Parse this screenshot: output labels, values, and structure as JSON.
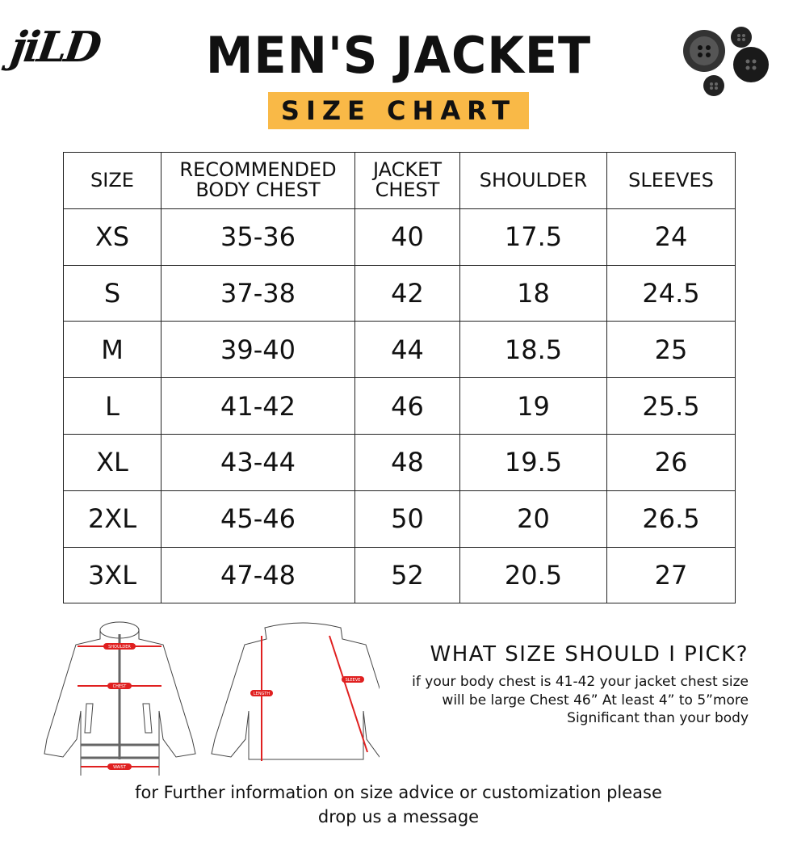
{
  "brand": "jiLD",
  "title": "MEN'S JACKET",
  "subtitle": "SIZE CHART",
  "table": {
    "headers": [
      "SIZE",
      "RECOMMENDED BODY CHEST",
      "JACKET CHEST",
      "SHOULDER",
      "SLEEVES"
    ],
    "rows": [
      [
        "XS",
        "35-36",
        "40",
        "17.5",
        "24"
      ],
      [
        "S",
        "37-38",
        "42",
        "18",
        "24.5"
      ],
      [
        "M",
        "39-40",
        "44",
        "18.5",
        "25"
      ],
      [
        "L",
        "41-42",
        "46",
        "19",
        "25.5"
      ],
      [
        "XL",
        "43-44",
        "48",
        "19.5",
        "26"
      ],
      [
        "2XL",
        "45-46",
        "50",
        "20",
        "26.5"
      ],
      [
        "3XL",
        "47-48",
        "52",
        "20.5",
        "27"
      ]
    ]
  },
  "diagram": {
    "labels": {
      "shoulder": "SHOULDER",
      "chest": "CHEST",
      "waist": "WAIST",
      "length": "LENGTH",
      "sleeve": "SLEEVE"
    },
    "accent": "#e02020"
  },
  "advice": {
    "heading": "WHAT SIZE SHOULD I PICK?",
    "lines": [
      "if your body chest is 41-42 your jacket chest size",
      "will be large Chest 46” At least 4” to 5”more",
      "Significant than your body"
    ]
  },
  "footer": [
    "for Further information on size advice or customization please",
    "drop us a message"
  ],
  "colors": {
    "highlight": "#f9b947"
  }
}
